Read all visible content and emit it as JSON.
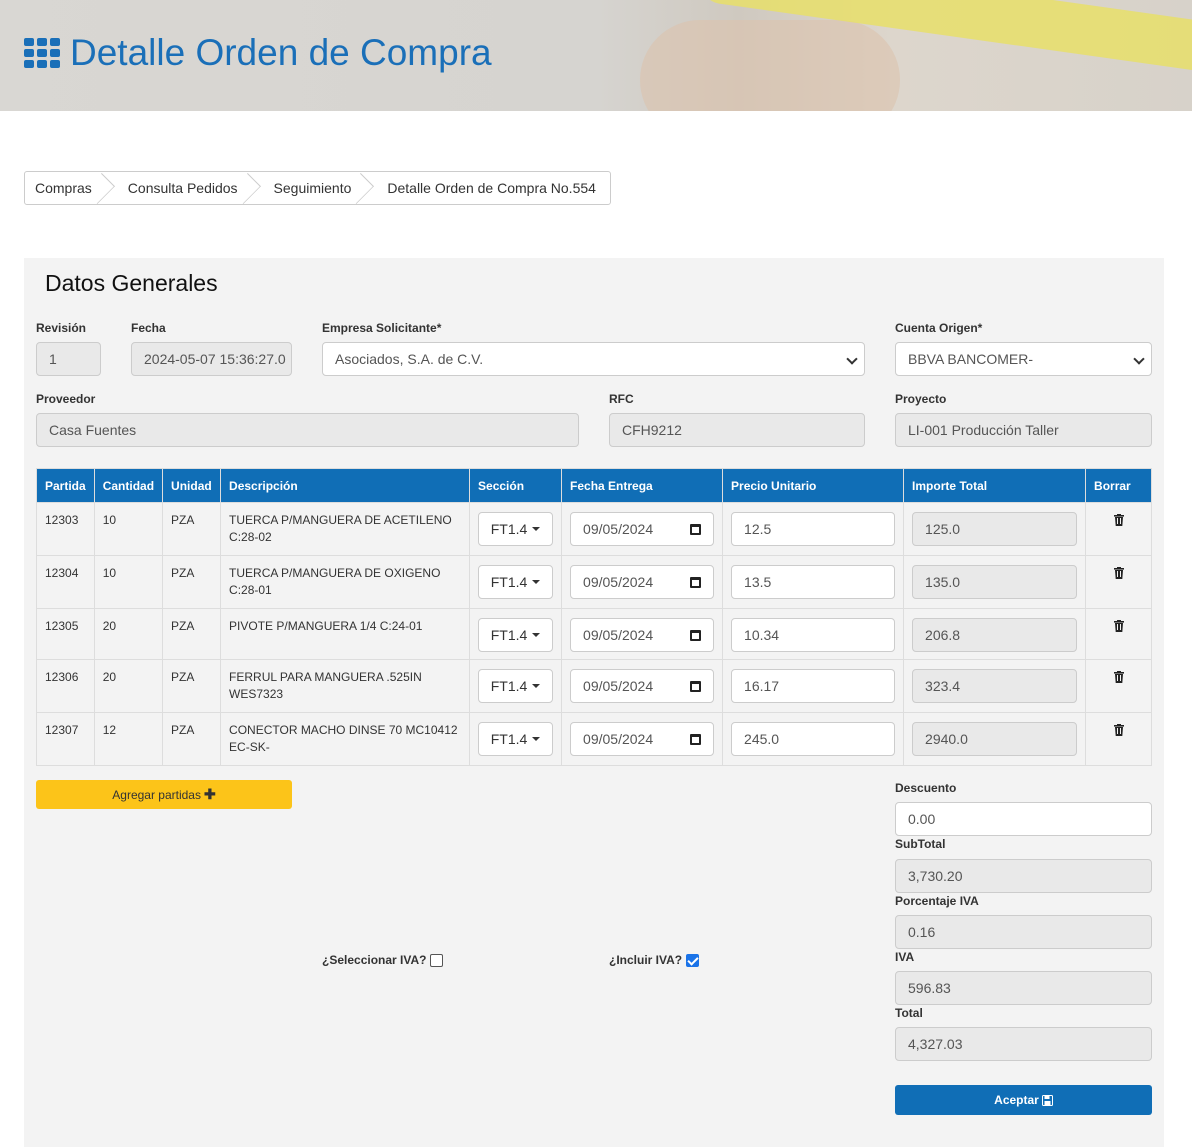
{
  "header": {
    "title": "Detalle Orden de Compra",
    "icon": "th-grid-icon"
  },
  "breadcrumb": [
    "Compras",
    "Consulta Pedidos",
    "Seguimiento",
    "Detalle Orden de Compra No.554"
  ],
  "section_title": "Datos Generales",
  "form": {
    "revision": {
      "label": "Revisión",
      "value": "1"
    },
    "fecha": {
      "label": "Fecha",
      "value": "2024-05-07 15:36:27.0"
    },
    "empresa": {
      "label": "Empresa Solicitante*",
      "value": "Asociados, S.A. de C.V."
    },
    "cuenta": {
      "label": "Cuenta Origen*",
      "value": "BBVA BANCOMER-"
    },
    "proveedor": {
      "label": "Proveedor",
      "value": "Casa Fuentes"
    },
    "rfc": {
      "label": "RFC",
      "value": "CFH9212"
    },
    "proyecto": {
      "label": "Proyecto",
      "value": "LI-001 Producción Taller"
    }
  },
  "table": {
    "headers": [
      "Partida",
      "Cantidad",
      "Unidad",
      "Descripción",
      "Sección",
      "Fecha Entrega",
      "Precio Unitario",
      "Importe Total",
      "Borrar"
    ],
    "rows": [
      {
        "partida": "12303",
        "cantidad": "10",
        "unidad": "PZA",
        "desc1": "TUERCA P/MANGUERA DE ACETILENO",
        "desc2": "C:28-02",
        "seccion": "FT1.4",
        "fecha": "09/05/2024",
        "precio": "12.5",
        "importe": "125.0"
      },
      {
        "partida": "12304",
        "cantidad": "10",
        "unidad": "PZA",
        "desc1": "TUERCA P/MANGUERA DE OXIGENO",
        "desc2": "C:28-01",
        "seccion": "FT1.4",
        "fecha": "09/05/2024",
        "precio": "13.5",
        "importe": "135.0"
      },
      {
        "partida": "12305",
        "cantidad": "20",
        "unidad": "PZA",
        "desc1": "PIVOTE P/MANGUERA 1/4 C:24-01",
        "desc2": "",
        "seccion": "FT1.4",
        "fecha": "09/05/2024",
        "precio": "10.34",
        "importe": "206.8"
      },
      {
        "partida": "12306",
        "cantidad": "20",
        "unidad": "PZA",
        "desc1": "FERRUL PARA MANGUERA .525IN",
        "desc2": "WES7323",
        "seccion": "FT1.4",
        "fecha": "09/05/2024",
        "precio": "16.17",
        "importe": "323.4"
      },
      {
        "partida": "12307",
        "cantidad": "12",
        "unidad": "PZA",
        "desc1": "CONECTOR MACHO DINSE 70 MC10412",
        "desc2": "EC-SK-",
        "seccion": "FT1.4",
        "fecha": "09/05/2024",
        "precio": "245.0",
        "importe": "2940.0"
      }
    ]
  },
  "add_button": "Agregar partidas",
  "iva_select": {
    "label": "¿Seleccionar IVA?",
    "checked": false
  },
  "iva_include": {
    "label": "¿Incluir IVA?",
    "checked": true
  },
  "totals": {
    "descuento": {
      "label": "Descuento",
      "value": "0.00"
    },
    "subtotal": {
      "label": "SubTotal",
      "value": "3,730.20"
    },
    "porcentaje": {
      "label": "Porcentaje IVA",
      "value": "0.16"
    },
    "iva": {
      "label": "IVA",
      "value": "596.83"
    },
    "total": {
      "label": "Total",
      "value": "4,327.03"
    }
  },
  "accept_button": "Aceptar",
  "colors": {
    "primary": "#106eb6",
    "accent": "#fcc419",
    "panel": "#f3f3f3"
  }
}
